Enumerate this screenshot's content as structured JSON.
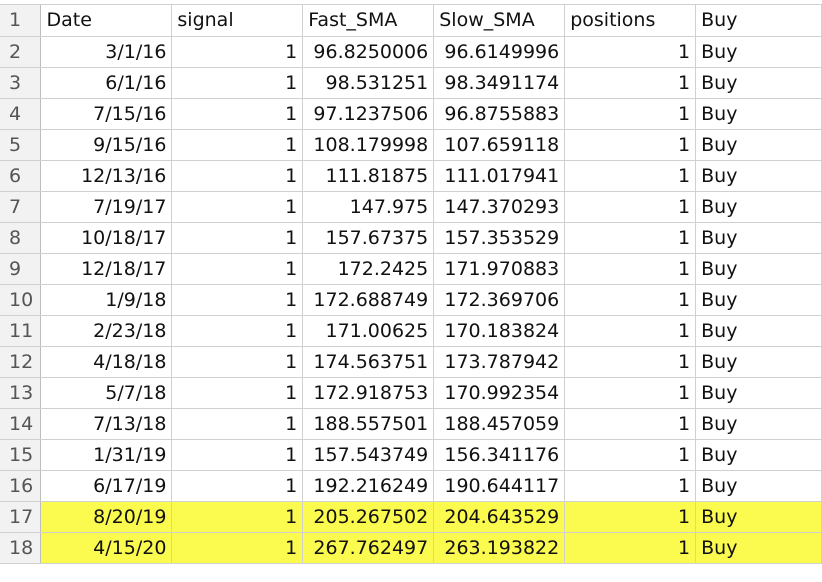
{
  "header": {
    "row_number": "1",
    "columns": [
      "Date",
      "signal",
      "Fast_SMA",
      "Slow_SMA",
      "positions",
      "Buy"
    ]
  },
  "highlight_color": "#fbfa4e",
  "rows": [
    {
      "n": "2",
      "date": "3/1/16",
      "signal": "1",
      "fast": "96.8250006",
      "slow": "96.6149996",
      "positions": "1",
      "action": "Buy",
      "highlight": false
    },
    {
      "n": "3",
      "date": "6/1/16",
      "signal": "1",
      "fast": "98.531251",
      "slow": "98.3491174",
      "positions": "1",
      "action": "Buy",
      "highlight": false
    },
    {
      "n": "4",
      "date": "7/15/16",
      "signal": "1",
      "fast": "97.1237506",
      "slow": "96.8755883",
      "positions": "1",
      "action": "Buy",
      "highlight": false
    },
    {
      "n": "5",
      "date": "9/15/16",
      "signal": "1",
      "fast": "108.179998",
      "slow": "107.659118",
      "positions": "1",
      "action": "Buy",
      "highlight": false
    },
    {
      "n": "6",
      "date": "12/13/16",
      "signal": "1",
      "fast": "111.81875",
      "slow": "111.017941",
      "positions": "1",
      "action": "Buy",
      "highlight": false
    },
    {
      "n": "7",
      "date": "7/19/17",
      "signal": "1",
      "fast": "147.975",
      "slow": "147.370293",
      "positions": "1",
      "action": "Buy",
      "highlight": false
    },
    {
      "n": "8",
      "date": "10/18/17",
      "signal": "1",
      "fast": "157.67375",
      "slow": "157.353529",
      "positions": "1",
      "action": "Buy",
      "highlight": false
    },
    {
      "n": "9",
      "date": "12/18/17",
      "signal": "1",
      "fast": "172.2425",
      "slow": "171.970883",
      "positions": "1",
      "action": "Buy",
      "highlight": false
    },
    {
      "n": "10",
      "date": "1/9/18",
      "signal": "1",
      "fast": "172.688749",
      "slow": "172.369706",
      "positions": "1",
      "action": "Buy",
      "highlight": false
    },
    {
      "n": "11",
      "date": "2/23/18",
      "signal": "1",
      "fast": "171.00625",
      "slow": "170.183824",
      "positions": "1",
      "action": "Buy",
      "highlight": false
    },
    {
      "n": "12",
      "date": "4/18/18",
      "signal": "1",
      "fast": "174.563751",
      "slow": "173.787942",
      "positions": "1",
      "action": "Buy",
      "highlight": false
    },
    {
      "n": "13",
      "date": "5/7/18",
      "signal": "1",
      "fast": "172.918753",
      "slow": "170.992354",
      "positions": "1",
      "action": "Buy",
      "highlight": false
    },
    {
      "n": "14",
      "date": "7/13/18",
      "signal": "1",
      "fast": "188.557501",
      "slow": "188.457059",
      "positions": "1",
      "action": "Buy",
      "highlight": false
    },
    {
      "n": "15",
      "date": "1/31/19",
      "signal": "1",
      "fast": "157.543749",
      "slow": "156.341176",
      "positions": "1",
      "action": "Buy",
      "highlight": false
    },
    {
      "n": "16",
      "date": "6/17/19",
      "signal": "1",
      "fast": "192.216249",
      "slow": "190.644117",
      "positions": "1",
      "action": "Buy",
      "highlight": false
    },
    {
      "n": "17",
      "date": "8/20/19",
      "signal": "1",
      "fast": "205.267502",
      "slow": "204.643529",
      "positions": "1",
      "action": "Buy",
      "highlight": true
    },
    {
      "n": "18",
      "date": "4/15/20",
      "signal": "1",
      "fast": "267.762497",
      "slow": "263.193822",
      "positions": "1",
      "action": "Buy",
      "highlight": true
    }
  ]
}
